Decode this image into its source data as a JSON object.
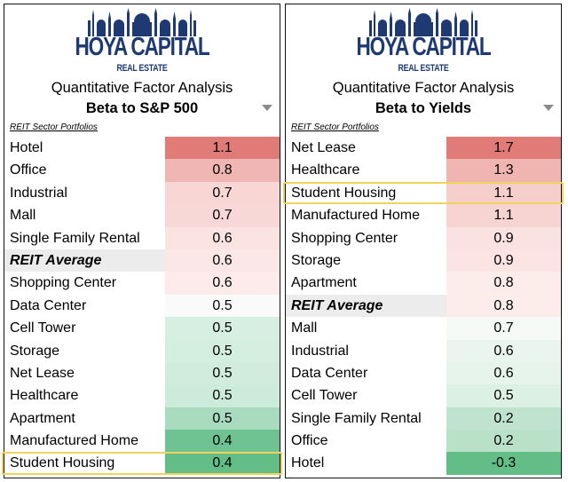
{
  "brand": {
    "name": "HOYA CAPITAL",
    "sub": "REAL ESTATE"
  },
  "panels": [
    {
      "title": "Quantitative Factor Analysis",
      "subtitle": "Beta to S&P 500",
      "section_label": "REIT Sector Portfolios",
      "rows": [
        {
          "label": "Hotel",
          "value": "1.1",
          "color": "#e07b78"
        },
        {
          "label": "Office",
          "value": "0.8",
          "color": "#f0b6b3"
        },
        {
          "label": "Industrial",
          "value": "0.7",
          "color": "#f8d6d4"
        },
        {
          "label": "Mall",
          "value": "0.7",
          "color": "#f8d8d6"
        },
        {
          "label": "Single Family Rental",
          "value": "0.6",
          "color": "#fae3e1"
        },
        {
          "label": "REIT Average",
          "value": "0.6",
          "color": "#fbe7e5",
          "average": true
        },
        {
          "label": "Shopping Center",
          "value": "0.6",
          "color": "#fcebea"
        },
        {
          "label": "Data Center",
          "value": "0.5",
          "color": "#fbfafa"
        },
        {
          "label": "Cell Tower",
          "value": "0.5",
          "color": "#d7efe2"
        },
        {
          "label": "Storage",
          "value": "0.5",
          "color": "#d4eee0"
        },
        {
          "label": "Net Lease",
          "value": "0.5",
          "color": "#d1ecdd"
        },
        {
          "label": "Healthcare",
          "value": "0.5",
          "color": "#cdebda"
        },
        {
          "label": "Apartment",
          "value": "0.5",
          "color": "#a9dbbf"
        },
        {
          "label": "Manufactured Home",
          "value": "0.4",
          "color": "#6fc392"
        },
        {
          "label": "Student Housing",
          "value": "0.4",
          "color": "#62bd87",
          "highlight": true
        }
      ]
    },
    {
      "title": "Quantitative Factor Analysis",
      "subtitle": "Beta to Yields",
      "section_label": "REIT Sector Portfolios",
      "rows": [
        {
          "label": "Net Lease",
          "value": "1.7",
          "color": "#e07b78"
        },
        {
          "label": "Healthcare",
          "value": "1.3",
          "color": "#f0b4b1"
        },
        {
          "label": "Student Housing",
          "value": "1.1",
          "color": "#f6cfcd",
          "highlight": true
        },
        {
          "label": "Manufactured Home",
          "value": "1.1",
          "color": "#f7d3d1"
        },
        {
          "label": "Shopping Center",
          "value": "0.9",
          "color": "#fae2e0"
        },
        {
          "label": "Storage",
          "value": "0.9",
          "color": "#fbe4e2"
        },
        {
          "label": "Apartment",
          "value": "0.8",
          "color": "#fcecea"
        },
        {
          "label": "REIT Average",
          "value": "0.8",
          "color": "#fcedeb",
          "average": true
        },
        {
          "label": "Mall",
          "value": "0.7",
          "color": "#f5faf7"
        },
        {
          "label": "Industrial",
          "value": "0.6",
          "color": "#e9f5ee"
        },
        {
          "label": "Data Center",
          "value": "0.6",
          "color": "#e6f4eb"
        },
        {
          "label": "Cell Tower",
          "value": "0.5",
          "color": "#dcf0e4"
        },
        {
          "label": "Single Family Rental",
          "value": "0.2",
          "color": "#bfe3cd"
        },
        {
          "label": "Office",
          "value": "0.2",
          "color": "#b9e1c8"
        },
        {
          "label": "Hotel",
          "value": "-0.3",
          "color": "#62bd87"
        }
      ]
    }
  ]
}
